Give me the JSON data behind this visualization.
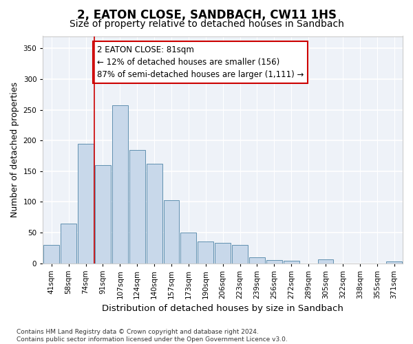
{
  "title": "2, EATON CLOSE, SANDBACH, CW11 1HS",
  "subtitle": "Size of property relative to detached houses in Sandbach",
  "xlabel": "Distribution of detached houses by size in Sandbach",
  "ylabel": "Number of detached properties",
  "categories": [
    "41sqm",
    "58sqm",
    "74sqm",
    "91sqm",
    "107sqm",
    "124sqm",
    "140sqm",
    "157sqm",
    "173sqm",
    "190sqm",
    "206sqm",
    "223sqm",
    "239sqm",
    "256sqm",
    "272sqm",
    "289sqm",
    "305sqm",
    "322sqm",
    "338sqm",
    "355sqm",
    "371sqm"
  ],
  "values": [
    30,
    65,
    195,
    160,
    257,
    185,
    162,
    103,
    50,
    35,
    33,
    30,
    10,
    5,
    4,
    0,
    6,
    0,
    0,
    0,
    3
  ],
  "bar_color": "#c8d8ea",
  "bar_edge_color": "#6090b0",
  "background_color": "#eef2f8",
  "grid_color": "#ffffff",
  "annotation_box_text": "2 EATON CLOSE: 81sqm\n← 12% of detached houses are smaller (156)\n87% of semi-detached houses are larger (1,111) →",
  "annotation_box_color": "#ffffff",
  "annotation_box_edge_color": "#cc0000",
  "red_line_x": 2.5,
  "ylim": [
    0,
    370
  ],
  "yticks": [
    0,
    50,
    100,
    150,
    200,
    250,
    300,
    350
  ],
  "footnote": "Contains HM Land Registry data © Crown copyright and database right 2024.\nContains public sector information licensed under the Open Government Licence v3.0.",
  "title_fontsize": 12,
  "subtitle_fontsize": 10,
  "xlabel_fontsize": 9.5,
  "ylabel_fontsize": 9,
  "tick_fontsize": 7.5,
  "annotation_fontsize": 8.5
}
